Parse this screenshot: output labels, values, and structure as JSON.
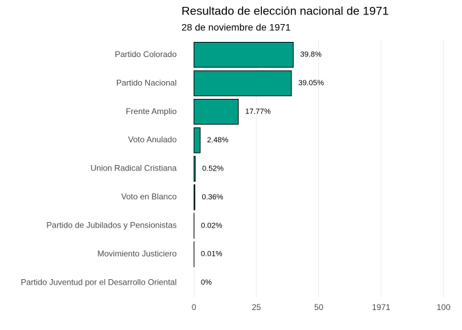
{
  "chart_data": {
    "type": "bar",
    "orientation": "horizontal",
    "title": "Resultado de elección nacional de 1971",
    "subtitle": "28 de noviembre de 1971",
    "categories": [
      "Partido Colorado",
      "Partido Nacional",
      "Frente Amplio",
      "Voto Anulado",
      "Union Radical Cristiana",
      "Voto en Blanco",
      "Partido de Jubilados y Pensionistas",
      "Movimiento Justiciero",
      "Partido Juventud por el Desarrollo Oriental"
    ],
    "values": [
      39.8,
      39.05,
      17.77,
      2.48,
      0.52,
      0.36,
      0.02,
      0.01,
      0
    ],
    "value_labels": [
      "39.8%",
      "39.05%",
      "17.77%",
      "2.48%",
      "0.52%",
      "0.36%",
      "0.02%",
      "0.01%",
      "0%"
    ],
    "color": "#009e87",
    "xlim": [
      -5,
      103
    ],
    "xticks": [
      0,
      25,
      50,
      {
        "value": 75,
        "label": "1971"
      },
      100
    ],
    "grid": true
  }
}
